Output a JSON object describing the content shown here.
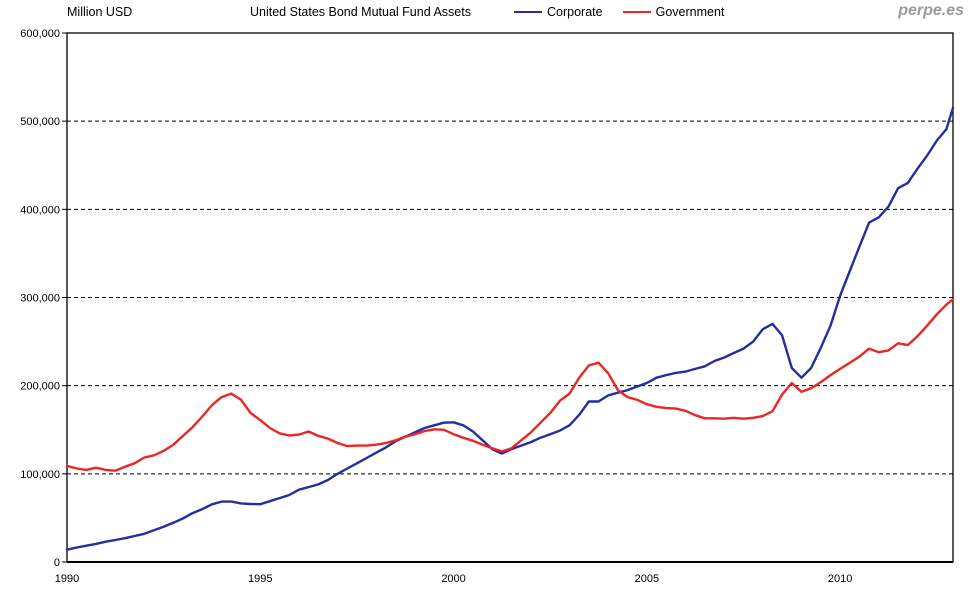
{
  "header": {
    "y_axis_unit": "Million USD",
    "title": "United States Bond Mutual Fund Assets",
    "watermark": "perpe.es"
  },
  "legend": [
    {
      "label": "Corporate",
      "color": "#232e9f"
    },
    {
      "label": "Government",
      "color": "#ef2424"
    }
  ],
  "chart_data": {
    "type": "line",
    "title": "United States Bond Mutual Fund Assets",
    "ylabel": "Million USD",
    "xlabel": "",
    "grid": "horizontal-dashed",
    "legend_position": "top",
    "xlim": [
      1990,
      2012.92
    ],
    "ylim": [
      0,
      600000
    ],
    "x_ticks": [
      1990,
      1995,
      2000,
      2005,
      2010
    ],
    "y_ticks": [
      0,
      100000,
      200000,
      300000,
      400000,
      500000,
      600000
    ],
    "y_gridlines": [
      100000,
      200000,
      300000,
      400000,
      500000
    ],
    "x_start": 1990,
    "x_step": 0.25,
    "x_unit": "year (quarterly samples)",
    "series": [
      {
        "name": "Corporate",
        "color": "#232e9f",
        "values": [
          14000,
          16500,
          18500,
          20500,
          23000,
          25000,
          27000,
          29500,
          32000,
          36000,
          40000,
          44500,
          49500,
          55500,
          60000,
          65500,
          68500,
          68500,
          66500,
          65800,
          65600,
          69000,
          72500,
          76000,
          82000,
          85000,
          88000,
          93000,
          100000,
          106000,
          112000,
          118000,
          124000,
          130000,
          137000,
          142000,
          147000,
          152000,
          155000,
          158000,
          158500,
          155000,
          148000,
          138000,
          128000,
          123000,
          128000,
          132000,
          136000,
          141000,
          145000,
          149000,
          155000,
          167000,
          182000,
          182000,
          189000,
          192000,
          195000,
          199000,
          203000,
          209000,
          212000,
          214500,
          216000,
          219000,
          222000,
          228000,
          232000,
          237000,
          242000,
          250000,
          264000,
          270000,
          257000,
          220000,
          209000,
          220000,
          243000,
          268000,
          302000,
          330000,
          358000,
          385000,
          391000,
          403000,
          424000,
          430000,
          446000,
          461000,
          478000,
          491000,
          515000
        ]
      },
      {
        "name": "Government",
        "color": "#ef2424",
        "values": [
          109000,
          106000,
          104500,
          107000,
          104500,
          103500,
          108000,
          112000,
          118500,
          121000,
          126000,
          133000,
          143000,
          153000,
          165000,
          178000,
          187000,
          191000,
          184000,
          169000,
          161000,
          152000,
          146000,
          143500,
          144500,
          148000,
          143000,
          140000,
          135000,
          131500,
          132000,
          132000,
          133000,
          135000,
          138000,
          142000,
          145000,
          148500,
          150500,
          150000,
          145000,
          141000,
          137500,
          133000,
          129000,
          125500,
          129000,
          138000,
          147000,
          158000,
          169000,
          183000,
          191000,
          209000,
          223000,
          226000,
          214000,
          195000,
          187000,
          184000,
          179000,
          176000,
          174500,
          174000,
          171500,
          166500,
          163000,
          163000,
          162500,
          163500,
          162500,
          163500,
          165500,
          171000,
          190000,
          203000,
          193000,
          197000,
          204000,
          212000,
          219000,
          226000,
          233000,
          242000,
          238000,
          240000,
          248000,
          246000,
          256000,
          268000,
          281000,
          292000,
          298000
        ]
      }
    ]
  }
}
